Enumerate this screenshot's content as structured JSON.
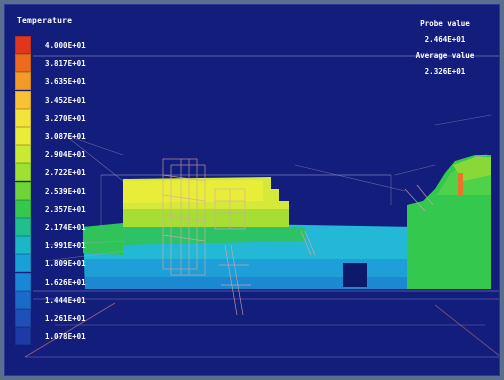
{
  "legend": {
    "title": "Temperature",
    "ticks": [
      "4.000E+01",
      "3.817E+01",
      "3.635E+01",
      "3.452E+01",
      "3.270E+01",
      "3.087E+01",
      "2.904E+01",
      "2.722E+01",
      "2.539E+01",
      "2.357E+01",
      "2.174E+01",
      "1.991E+01",
      "1.809E+01",
      "1.626E+01",
      "1.444E+01",
      "1.261E+01",
      "1.078E+01"
    ],
    "colors": [
      "#e0361e",
      "#ee6a1e",
      "#f39a28",
      "#f7c233",
      "#f5e23a",
      "#e9ec38",
      "#c9ea34",
      "#9fe032",
      "#6fd43a",
      "#35c84e",
      "#1fc08e",
      "#19b8c4",
      "#1aa0d8",
      "#1a86d6",
      "#1c6ac8",
      "#1e50b8",
      "#1e3aa6"
    ]
  },
  "probe": {
    "probe_label": "Probe value",
    "probe_value": "2.464E+01",
    "average_label": "Average value",
    "average_value": "2.326E+01"
  }
}
